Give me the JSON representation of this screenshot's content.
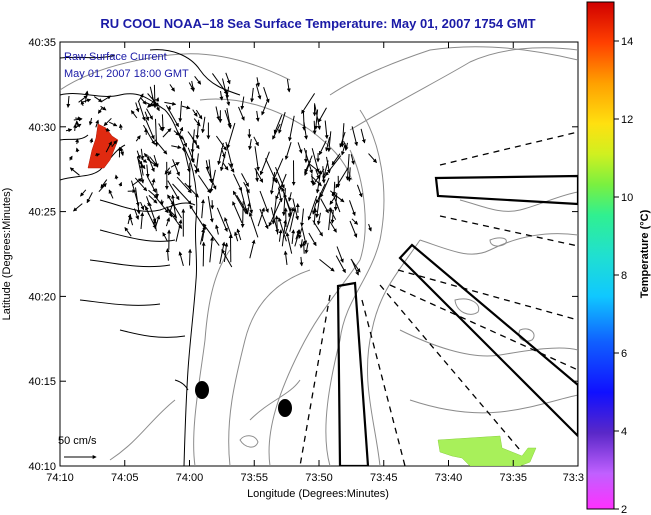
{
  "title": "RU COOL  NOAA–18  Sea Surface Temperature:  May 01, 2007 1754 GMT",
  "legend": {
    "line1": "Raw Surface Current",
    "line2": "May 01, 2007 18:00 GMT"
  },
  "x_axis": {
    "label": "Longitude (Degrees:Minutes)",
    "ticks": [
      "74:10",
      "74:05",
      "74:00",
      "73:55",
      "73:50",
      "73:45",
      "73:40",
      "73:35",
      "73:3"
    ]
  },
  "y_axis": {
    "label": "Latitude (Degrees:Minutes)",
    "ticks": [
      "40:10",
      "40:15",
      "40:20",
      "40:25",
      "40:30",
      "40:35"
    ]
  },
  "scale_bar": {
    "label": "50 cm/s"
  },
  "colorbar": {
    "label": "Temperature (°C)",
    "ticks": [
      "2",
      "4",
      "6",
      "8",
      "10",
      "12",
      "14"
    ],
    "range": [
      2,
      15
    ]
  },
  "colors": {
    "title": "#1a1aa6",
    "coast": "#000000",
    "bathymetry": "#888888",
    "warm_patch": "#e02a10",
    "cool_patch": "#a8f05a"
  },
  "features": {
    "vectors": "raw surface current arrows",
    "warm_patch": "sst-warm-patch",
    "cool_patch": "sst-cool-patch",
    "buoys": 2,
    "transect_boxes": 3,
    "dashed_lines": 6
  }
}
